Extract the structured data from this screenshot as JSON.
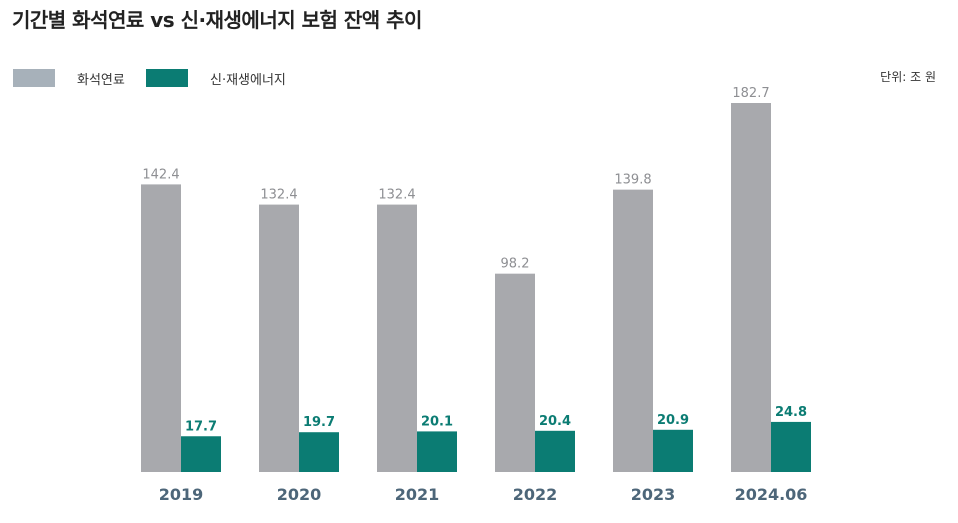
{
  "title": "기간별 화석연료 vs 신·재생에너지 보험 잔액 추이",
  "unit": "단위: 조 원",
  "colors": {
    "fossil_legend": "#a7b1ba",
    "fossil_bar": "#a8a9ad",
    "renew": "#0b7c73",
    "year": "#4d6679",
    "fossil_label": "#8e8f93"
  },
  "chart_data": {
    "type": "bar",
    "categories": [
      "2019",
      "2020",
      "2021",
      "2022",
      "2023",
      "2024.06"
    ],
    "series": [
      {
        "name": "화석연료",
        "values": [
          142.4,
          132.4,
          132.4,
          98.2,
          139.8,
          182.7
        ]
      },
      {
        "name": "신·재생에너지",
        "values": [
          17.7,
          19.7,
          20.1,
          20.4,
          20.9,
          24.8
        ]
      }
    ],
    "ylim": [
      0,
      182.7
    ],
    "grid": false,
    "legend": "top-left"
  }
}
